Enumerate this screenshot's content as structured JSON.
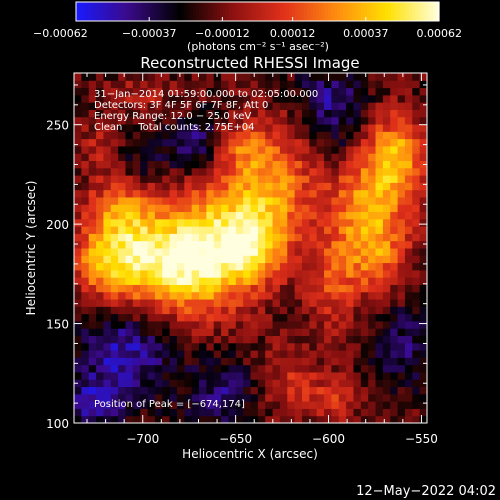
{
  "chart_data": {
    "type": "heatmap",
    "title": "Reconstructed RHESSI Image",
    "xlabel": "Heliocentric X (arcsec)",
    "ylabel": "Heliocentric Y (arcsec)",
    "xlim": [
      -737,
      -547
    ],
    "ylim": [
      100,
      276
    ],
    "x_ticks": [
      -700,
      -650,
      -600,
      -550
    ],
    "x_tick_labels": [
      "−700",
      "−650",
      "−600",
      "−550"
    ],
    "y_ticks": [
      100,
      150,
      200,
      250
    ],
    "y_tick_labels": [
      "100",
      "150",
      "200",
      "250"
    ],
    "colorbar": {
      "range": [
        -0.00062,
        0.00062
      ],
      "ticks": [
        -0.00062,
        -0.00037,
        -0.00012,
        0.00012,
        0.00037,
        0.00062
      ],
      "tick_labels": [
        "−0.00062",
        "−0.00037",
        "−0.00012",
        "0.00012",
        "0.00037",
        "0.00062"
      ],
      "units": "(photons cm⁻² s⁻¹ asec⁻²)",
      "colors": [
        "#1a1aff",
        "#3a0a8a",
        "#000000",
        "#8a1010",
        "#e0301a",
        "#ff8a10",
        "#ffe000",
        "#ffffe0"
      ]
    },
    "annotations": [
      "31−Jan−2014 01:59:00.000 to 02:05:00.000",
      "Detectors: 3F 4F 5F 6F 7F 8F, Att 0",
      "Energy Range: 12.0 − 25.0 keV",
      "Clean     Total counts: 2.75E+04"
    ],
    "peak_label": "Position of Peak = [−674,174]",
    "peak_position": [
      -674,
      174
    ],
    "blobs": [
      {
        "x": -690,
        "y": 180,
        "sx": 22,
        "sy": 16,
        "v": 0.0006
      },
      {
        "x": -662,
        "y": 188,
        "sx": 20,
        "sy": 22,
        "v": 0.00052
      },
      {
        "x": -712,
        "y": 205,
        "sx": 14,
        "sy": 14,
        "v": 0.0004
      },
      {
        "x": -722,
        "y": 180,
        "sx": 12,
        "sy": 12,
        "v": 0.00032
      },
      {
        "x": -632,
        "y": 220,
        "sx": 18,
        "sy": 22,
        "v": 0.00045
      },
      {
        "x": -640,
        "y": 190,
        "sx": 12,
        "sy": 12,
        "v": 0.00034
      },
      {
        "x": -598,
        "y": 170,
        "sx": 10,
        "sy": 18,
        "v": 0.00025
      },
      {
        "x": -578,
        "y": 215,
        "sx": 16,
        "sy": 24,
        "v": 0.00045
      },
      {
        "x": -562,
        "y": 235,
        "sx": 10,
        "sy": 14,
        "v": 0.00038
      },
      {
        "x": -575,
        "y": 185,
        "sx": 12,
        "sy": 14,
        "v": 0.00028
      },
      {
        "x": -650,
        "y": 240,
        "sx": 10,
        "sy": 8,
        "v": 0.00022
      },
      {
        "x": -622,
        "y": 120,
        "sx": 14,
        "sy": 12,
        "v": 0.00022
      },
      {
        "x": -595,
        "y": 112,
        "sx": 10,
        "sy": 8,
        "v": 0.0002
      },
      {
        "x": -700,
        "y": 265,
        "sx": 14,
        "sy": 8,
        "v": 0.00015
      },
      {
        "x": -725,
        "y": 240,
        "sx": 8,
        "sy": 8,
        "v": 0.00018
      },
      {
        "x": -700,
        "y": 230,
        "sx": 10,
        "sy": 8,
        "v": -0.00015
      },
      {
        "x": -670,
        "y": 240,
        "sx": 12,
        "sy": 10,
        "v": -0.0003
      },
      {
        "x": -595,
        "y": 245,
        "sx": 12,
        "sy": 14,
        "v": -0.00025
      },
      {
        "x": -600,
        "y": 265,
        "sx": 14,
        "sy": 8,
        "v": -0.0002
      },
      {
        "x": -710,
        "y": 135,
        "sx": 18,
        "sy": 16,
        "v": -0.00032
      },
      {
        "x": -655,
        "y": 115,
        "sx": 14,
        "sy": 12,
        "v": -0.00024
      },
      {
        "x": -725,
        "y": 110,
        "sx": 10,
        "sy": 8,
        "v": -0.0003
      },
      {
        "x": -560,
        "y": 140,
        "sx": 12,
        "sy": 14,
        "v": -0.0002
      }
    ]
  },
  "footer": {
    "timestamp": "12−May−2022 04:02"
  }
}
